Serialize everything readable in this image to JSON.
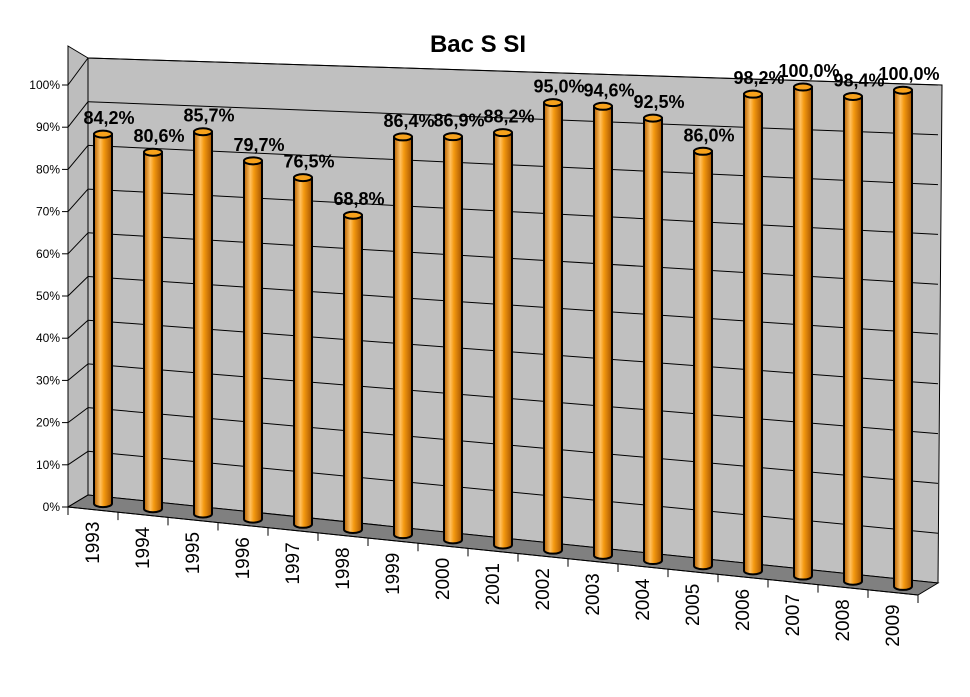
{
  "chart_data": {
    "type": "bar",
    "title": "Bac S SI",
    "categories": [
      "1993",
      "1994",
      "1995",
      "1996",
      "1997",
      "1998",
      "1999",
      "2000",
      "2001",
      "2002",
      "2003",
      "2004",
      "2005",
      "2006",
      "2007",
      "2008",
      "2009"
    ],
    "series": [
      {
        "values": [
          84.2,
          80.6,
          85.7,
          79.7,
          76.5,
          68.8,
          86.4,
          86.9,
          88.2,
          95.0,
          94.6,
          92.5,
          86.0,
          98.2,
          100.0,
          98.4,
          100.0
        ],
        "data_labels": [
          "84,2%",
          "80,6%",
          "85,7%",
          "79,7%",
          "76,5%",
          "68,8%",
          "86,4%",
          "86,9%",
          "88,2%",
          "95,0%",
          "94,6%",
          "92,5%",
          "86,0%",
          "98,2%",
          "100,0%",
          "98,4%",
          "100,0%"
        ],
        "color": "#F08A00"
      }
    ],
    "ylim": [
      0,
      100
    ],
    "yticks": [
      "0%",
      "10%",
      "20%",
      "30%",
      "40%",
      "50%",
      "60%",
      "70%",
      "80%",
      "90%",
      "100%"
    ],
    "grid": true,
    "style": "3d-cylinder",
    "colors": {
      "bar": "#F08A00",
      "back_wall": "#C0C0C0",
      "floor": "#808080",
      "gridline": "#000000"
    }
  }
}
